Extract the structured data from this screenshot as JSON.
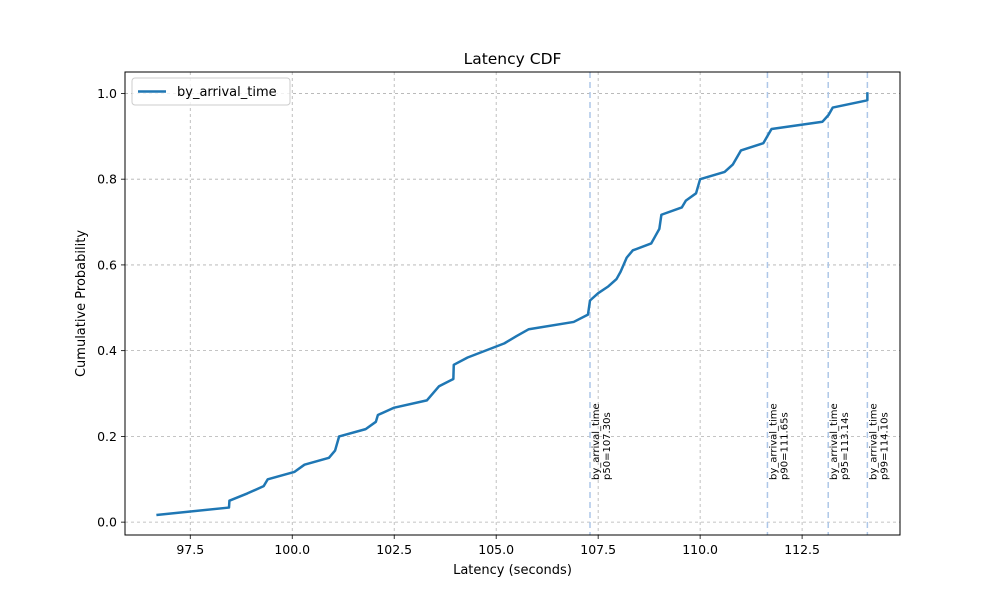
{
  "chart_data": {
    "type": "line",
    "title": "Latency CDF",
    "xlabel": "Latency (seconds)",
    "ylabel": "Cumulative Probability",
    "xlim": [
      95.9,
      114.9
    ],
    "ylim": [
      -0.03,
      1.05
    ],
    "xticks": [
      97.5,
      100.0,
      102.5,
      105.0,
      107.5,
      110.0,
      112.5
    ],
    "xtick_labels": [
      "97.5",
      "100.0",
      "102.5",
      "105.0",
      "107.5",
      "110.0",
      "112.5"
    ],
    "yticks": [
      0.0,
      0.2,
      0.4,
      0.6,
      0.8,
      1.0
    ],
    "ytick_labels": [
      "0.0",
      "0.2",
      "0.4",
      "0.6",
      "0.8",
      "1.0"
    ],
    "grid": true,
    "legend_position": "top-left",
    "series": [
      {
        "name": "by_arrival_time",
        "color": "#1f77b4",
        "x": [
          96.7,
          98.45,
          98.46,
          98.9,
          99.3,
          99.4,
          100.05,
          100.3,
          100.9,
          101.05,
          101.15,
          101.8,
          102.05,
          102.1,
          102.5,
          103.3,
          103.6,
          103.95,
          103.96,
          104.3,
          105.2,
          105.5,
          105.8,
          106.9,
          107.25,
          107.3,
          107.5,
          107.75,
          107.95,
          108.05,
          108.2,
          108.35,
          108.8,
          108.9,
          109.0,
          109.05,
          109.55,
          109.65,
          109.9,
          110.0,
          110.6,
          110.8,
          111.0,
          111.55,
          111.75,
          113.0,
          113.15,
          113.25,
          114.1,
          114.1
        ],
        "y": [
          0.017,
          0.034,
          0.05,
          0.067,
          0.084,
          0.1,
          0.117,
          0.134,
          0.15,
          0.167,
          0.2,
          0.217,
          0.234,
          0.25,
          0.267,
          0.284,
          0.317,
          0.334,
          0.367,
          0.384,
          0.417,
          0.434,
          0.45,
          0.467,
          0.484,
          0.517,
          0.534,
          0.55,
          0.567,
          0.584,
          0.617,
          0.634,
          0.65,
          0.667,
          0.684,
          0.717,
          0.734,
          0.75,
          0.767,
          0.8,
          0.817,
          0.834,
          0.867,
          0.884,
          0.917,
          0.934,
          0.95,
          0.967,
          0.984,
          1.0
        ]
      }
    ],
    "percentile_lines": [
      {
        "x": 107.3,
        "label_line1": "by_arrival_time",
        "label_line2": "p50=107.30s"
      },
      {
        "x": 111.65,
        "label_line1": "by_arrival_time",
        "label_line2": "p90=111.65s"
      },
      {
        "x": 113.14,
        "label_line1": "by_arrival_time",
        "label_line2": "p95=113.14s"
      },
      {
        "x": 114.1,
        "label_line1": "by_arrival_time",
        "label_line2": "p99=114.10s"
      }
    ],
    "percentile_line_color": "#aec7e8"
  }
}
